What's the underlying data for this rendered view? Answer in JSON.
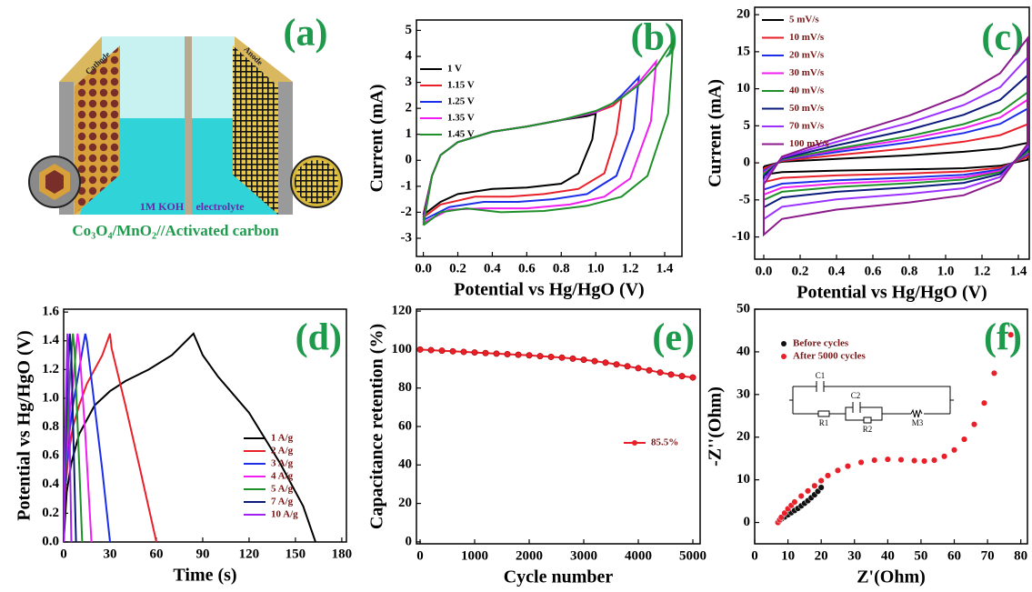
{
  "illustration": {
    "panel_label": "(a)",
    "cathode": "Cathode",
    "anode": "Anode",
    "electrolyte_name": "1M KOH",
    "electrolyte": "electrolyte",
    "caption": "Co₃O₄/MnO₂//Activated carbon"
  },
  "chart_data": [
    {
      "type": "line",
      "panel_label": "(b)",
      "x_label": "Potential vs Hg/HgO (V)",
      "y_label": "Current (mA)",
      "xlim": [
        -0.04,
        1.5
      ],
      "ylim": [
        -3.7,
        5.4
      ],
      "xticks": [
        {
          "value": 0,
          "label": "0.0"
        },
        0.2,
        0.4,
        0.6,
        0.8,
        {
          "value": 1,
          "label": "1.0"
        },
        1.2,
        1.4
      ],
      "yticks": [
        -3,
        -2,
        -1,
        0,
        1,
        2,
        3,
        4,
        5
      ],
      "series": [
        {
          "name": "1 V",
          "color": "#000000",
          "x": [
            0,
            0.05,
            0.1,
            0.2,
            0.4,
            0.6,
            0.8,
            0.95,
            1.0,
            0.98,
            0.9,
            0.8,
            0.6,
            0.4,
            0.2,
            0.1,
            0.02,
            0
          ],
          "values": [
            -2.1,
            -0.6,
            0.2,
            0.7,
            1.1,
            1.3,
            1.55,
            1.7,
            1.8,
            0.8,
            -0.5,
            -0.9,
            -1.05,
            -1.1,
            -1.3,
            -1.6,
            -2.0,
            -2.1
          ]
        },
        {
          "name": "1.15 V",
          "color": "#e8202a",
          "x": [
            0,
            0.05,
            0.1,
            0.2,
            0.4,
            0.6,
            0.8,
            1.0,
            1.1,
            1.15,
            1.12,
            1.05,
            0.9,
            0.7,
            0.5,
            0.3,
            0.1,
            0.02,
            0
          ],
          "values": [
            -2.2,
            -0.6,
            0.2,
            0.7,
            1.1,
            1.3,
            1.55,
            1.85,
            2.1,
            2.4,
            1.0,
            -0.5,
            -1.1,
            -1.3,
            -1.4,
            -1.4,
            -1.7,
            -2.1,
            -2.2
          ]
        },
        {
          "name": "1.25 V",
          "color": "#1c2ee8",
          "x": [
            0,
            0.05,
            0.1,
            0.2,
            0.4,
            0.6,
            0.8,
            1.0,
            1.1,
            1.15,
            1.25,
            1.22,
            1.12,
            0.95,
            0.75,
            0.55,
            0.35,
            0.15,
            0.03,
            0
          ],
          "values": [
            -2.3,
            -0.6,
            0.2,
            0.7,
            1.1,
            1.3,
            1.55,
            1.85,
            2.2,
            2.5,
            3.2,
            1.2,
            -0.6,
            -1.3,
            -1.5,
            -1.6,
            -1.6,
            -1.8,
            -2.2,
            -2.3
          ]
        },
        {
          "name": "1.35 V",
          "color": "#f01ef0",
          "x": [
            0,
            0.05,
            0.1,
            0.2,
            0.4,
            0.6,
            0.8,
            1.0,
            1.1,
            1.15,
            1.25,
            1.35,
            1.32,
            1.2,
            1.05,
            0.85,
            0.6,
            0.35,
            0.15,
            0.03,
            0
          ],
          "values": [
            -2.4,
            -0.6,
            0.2,
            0.7,
            1.1,
            1.3,
            1.55,
            1.85,
            2.2,
            2.4,
            3.0,
            3.8,
            1.5,
            -0.7,
            -1.4,
            -1.7,
            -1.85,
            -1.85,
            -1.9,
            -2.3,
            -2.4
          ]
        },
        {
          "name": "1.45 V",
          "color": "#1f8f2a",
          "x": [
            0,
            0.05,
            0.1,
            0.2,
            0.4,
            0.6,
            0.8,
            1.0,
            1.1,
            1.15,
            1.25,
            1.35,
            1.45,
            1.42,
            1.3,
            1.15,
            0.95,
            0.7,
            0.45,
            0.25,
            0.1,
            0.02,
            0
          ],
          "values": [
            -2.5,
            -0.6,
            0.2,
            0.7,
            1.1,
            1.3,
            1.55,
            1.9,
            2.2,
            2.4,
            2.9,
            3.6,
            4.6,
            1.8,
            -0.6,
            -1.4,
            -1.75,
            -1.95,
            -2.0,
            -1.85,
            -2.0,
            -2.4,
            -2.5
          ]
        }
      ]
    },
    {
      "type": "line",
      "panel_label": "(c)",
      "x_label": "Potential vs Hg/HgO (V)",
      "y_label": "Current (mA)",
      "xlim": [
        -0.05,
        1.46
      ],
      "ylim": [
        -13,
        21
      ],
      "xticks": [
        {
          "value": 0,
          "label": "0.0"
        },
        0.2,
        0.4,
        0.6,
        0.8,
        {
          "value": 1,
          "label": "1.0"
        },
        1.2,
        1.4
      ],
      "yticks": [
        -10,
        -5,
        0,
        5,
        10,
        15,
        20
      ],
      "series": [
        {
          "name": "5 mV/s",
          "color": "#000000",
          "x": [
            0,
            0.1,
            0.4,
            0.8,
            1.1,
            1.3,
            1.45,
            1.45,
            1.3,
            1.1,
            0.8,
            0.4,
            0.1,
            0,
            0
          ],
          "values": [
            -0.48,
            0.14,
            0.54,
            1.03,
            1.49,
            1.94,
            2.7,
            0.41,
            -0.4,
            -0.72,
            -0.88,
            -1.04,
            -1.25,
            -1.6,
            -0.48
          ]
        },
        {
          "name": "10 mV/s",
          "color": "#e8202a",
          "x": [
            0,
            0.1,
            0.4,
            0.8,
            1.1,
            1.3,
            1.45,
            1.45,
            1.3,
            1.1,
            0.8,
            0.4,
            0.1,
            0,
            0
          ],
          "values": [
            -0.78,
            0.26,
            1.04,
            1.98,
            2.86,
            3.74,
            5.2,
            0.78,
            -0.65,
            -1.17,
            -1.43,
            -1.69,
            -2.03,
            -2.6,
            -0.78
          ]
        },
        {
          "name": "20 mV/s",
          "color": "#1c2ee8",
          "x": [
            0,
            0.1,
            0.4,
            0.8,
            1.1,
            1.3,
            1.45,
            1.45,
            1.3,
            1.1,
            0.8,
            0.4,
            0.1,
            0,
            0
          ],
          "values": [
            -1.08,
            0.37,
            1.46,
            2.77,
            4.02,
            5.26,
            7.3,
            1.1,
            -0.9,
            -1.62,
            -1.98,
            -2.34,
            -2.81,
            -3.6,
            -1.08
          ]
        },
        {
          "name": "30 mV/s",
          "color": "#f01ef0",
          "x": [
            0,
            0.1,
            0.4,
            0.8,
            1.1,
            1.3,
            1.45,
            1.45,
            1.3,
            1.1,
            0.8,
            0.4,
            0.1,
            0,
            0
          ],
          "values": [
            -1.29,
            0.43,
            1.7,
            3.23,
            4.68,
            6.12,
            8.5,
            1.28,
            -1.08,
            -1.94,
            -2.37,
            -2.8,
            -3.35,
            -4.3,
            -1.29
          ]
        },
        {
          "name": "40 mV/s",
          "color": "#1f8f2a",
          "x": [
            0,
            0.1,
            0.4,
            0.8,
            1.1,
            1.3,
            1.45,
            1.45,
            1.3,
            1.1,
            0.8,
            0.4,
            0.1,
            0,
            0
          ],
          "values": [
            -1.5,
            0.48,
            1.9,
            3.61,
            5.23,
            6.84,
            9.5,
            1.43,
            -1.25,
            -2.25,
            -2.75,
            -3.25,
            -3.9,
            -5.0,
            -1.5
          ]
        },
        {
          "name": "50 mV/s",
          "color": "#0a1a7a",
          "x": [
            0,
            0.1,
            0.4,
            0.8,
            1.1,
            1.3,
            1.45,
            1.45,
            1.3,
            1.1,
            0.8,
            0.4,
            0.1,
            0,
            0
          ],
          "values": [
            -1.8,
            0.59,
            2.36,
            4.48,
            6.49,
            8.5,
            11.8,
            1.77,
            -1.5,
            -2.7,
            -3.3,
            -3.9,
            -4.68,
            -6.0,
            -1.8
          ]
        },
        {
          "name": "70 mV/s",
          "color": "#9b30ff",
          "x": [
            0,
            0.1,
            0.4,
            0.8,
            1.1,
            1.3,
            1.45,
            1.45,
            1.3,
            1.1,
            0.8,
            0.4,
            0.1,
            0,
            0
          ],
          "values": [
            -2.28,
            0.71,
            2.84,
            5.4,
            7.81,
            10.22,
            14.2,
            2.13,
            -1.9,
            -3.42,
            -4.18,
            -4.94,
            -5.93,
            -7.6,
            -2.28
          ]
        },
        {
          "name": "100 mV/s",
          "color": "#8b1a8b",
          "x": [
            0,
            0.1,
            0.4,
            0.8,
            1.1,
            1.3,
            1.45,
            1.45,
            1.3,
            1.1,
            0.8,
            0.4,
            0.1,
            0,
            0
          ],
          "values": [
            -2.91,
            0.84,
            3.36,
            6.38,
            9.24,
            12.1,
            16.8,
            2.52,
            -2.43,
            -4.37,
            -5.34,
            -6.31,
            -7.57,
            -9.7,
            -2.91
          ]
        }
      ]
    },
    {
      "type": "line",
      "panel_label": "(d)",
      "x_label": "Time (s)",
      "y_label": "Potential vs Hg/HgO (V)",
      "xlim": [
        0,
        183
      ],
      "ylim": [
        0,
        1.62
      ],
      "xticks": [
        0,
        30,
        60,
        90,
        120,
        150,
        180
      ],
      "yticks": [
        {
          "value": 0,
          "label": "0.0"
        },
        0.2,
        0.4,
        0.6,
        0.8,
        {
          "value": 1,
          "label": "1.0"
        },
        1.2,
        1.4,
        1.6
      ],
      "series": [
        {
          "name": "1 A/g",
          "color": "#000000",
          "x": [
            0,
            2,
            5,
            10,
            20,
            30,
            40,
            55,
            70,
            84,
            90,
            100,
            120,
            140,
            155,
            163
          ],
          "values": [
            0,
            0.35,
            0.55,
            0.75,
            0.95,
            1.05,
            1.12,
            1.2,
            1.3,
            1.45,
            1.3,
            1.15,
            0.9,
            0.55,
            0.25,
            0
          ]
        },
        {
          "name": "2 A/g",
          "color": "#e8202a",
          "x": [
            0,
            1,
            3,
            6,
            10,
            15,
            20,
            25,
            30,
            31,
            40,
            50,
            60
          ],
          "values": [
            0,
            0.35,
            0.6,
            0.8,
            0.95,
            1.1,
            1.2,
            1.3,
            1.45,
            1.35,
            0.95,
            0.48,
            0
          ]
        },
        {
          "name": "3 A/g",
          "color": "#1c2ee8",
          "x": [
            0,
            1,
            3,
            6,
            10,
            14,
            15,
            20,
            25,
            30
          ],
          "values": [
            0,
            0.4,
            0.7,
            0.95,
            1.2,
            1.45,
            1.4,
            0.95,
            0.5,
            0
          ]
        },
        {
          "name": "4 A/g",
          "color": "#f01ef0",
          "x": [
            0,
            1,
            3,
            6,
            9,
            10,
            14,
            18
          ],
          "values": [
            0,
            0.45,
            0.8,
            1.1,
            1.45,
            1.38,
            0.75,
            0
          ]
        },
        {
          "name": "5 A/g",
          "color": "#1f8f2a",
          "x": [
            0,
            1,
            3,
            6,
            7,
            9.5,
            12
          ],
          "values": [
            0,
            0.5,
            0.95,
            1.45,
            1.35,
            0.7,
            0
          ]
        },
        {
          "name": "7 A/g",
          "color": "#0a1a7a",
          "x": [
            0,
            1,
            2.5,
            4,
            5,
            8
          ],
          "values": [
            0,
            0.6,
            1.1,
            1.45,
            1.3,
            0
          ]
        },
        {
          "name": "10 A/g",
          "color": "#a020f0",
          "x": [
            0,
            0.8,
            2.5,
            3,
            5
          ],
          "values": [
            0,
            0.7,
            1.45,
            1.3,
            0
          ]
        }
      ]
    },
    {
      "type": "line",
      "markers": true,
      "panel_label": "(e)",
      "x_label": "Cycle number",
      "y_label": "Capacitance retention (%)",
      "xlim": [
        -67,
        5133
      ],
      "ylim": [
        -1,
        121
      ],
      "xticks": [
        0,
        1000,
        2000,
        3000,
        4000,
        5000
      ],
      "yticks": [
        0,
        20,
        40,
        60,
        80,
        100,
        120
      ],
      "series": [
        {
          "name": "85.5%",
          "color": "#e8202a",
          "x": [
            0,
            200,
            400,
            600,
            800,
            1000,
            1200,
            1400,
            1600,
            1800,
            2000,
            2200,
            2400,
            2600,
            2800,
            3000,
            3200,
            3400,
            3600,
            3800,
            4000,
            4200,
            4400,
            4600,
            4800,
            5000
          ],
          "values": [
            100,
            99.7,
            99.4,
            99.1,
            98.8,
            98.5,
            98.2,
            97.9,
            97.6,
            97.3,
            97.0,
            96.6,
            96.2,
            95.8,
            95.3,
            94.7,
            94.0,
            93.2,
            92.3,
            91.3,
            90.3,
            89.2,
            88.1,
            87.0,
            86.2,
            85.5
          ]
        }
      ]
    },
    {
      "type": "scatter",
      "panel_label": "(f)",
      "x_label": "Z'(Ohm)",
      "y_label": "-Z''(Ohm)",
      "xlim": [
        0,
        82
      ],
      "ylim": [
        -5,
        50
      ],
      "xticks": [
        0,
        10,
        20,
        30,
        40,
        50,
        60,
        70,
        80
      ],
      "yticks": [
        0,
        10,
        20,
        30,
        40,
        50
      ],
      "circuit_labels": [
        "C1",
        "R1",
        "C2",
        "R2",
        "M3"
      ],
      "series": [
        {
          "name": "Before cycles",
          "color": "#111111",
          "x": [
            7,
            7.5,
            8,
            9,
            10,
            11,
            12,
            13,
            14,
            15,
            16,
            17,
            18,
            19,
            20
          ],
          "values": [
            0,
            0.4,
            0.8,
            1.3,
            1.8,
            2.3,
            2.8,
            3.3,
            3.9,
            4.5,
            5.1,
            5.8,
            6.5,
            7.3,
            8.2
          ]
        },
        {
          "name": "After 5000 cycles",
          "color": "#e8202a",
          "x": [
            7,
            7.5,
            8,
            9,
            10,
            11,
            12,
            14,
            16,
            18,
            20,
            22,
            25,
            28,
            32,
            36,
            40,
            44,
            48,
            51,
            54,
            57,
            60,
            63,
            66,
            69,
            72,
            77
          ],
          "values": [
            0,
            0.6,
            1.2,
            2.2,
            3.2,
            4.0,
            4.8,
            6.2,
            7.4,
            8.6,
            9.8,
            11,
            12.2,
            13.2,
            14.1,
            14.6,
            14.8,
            14.7,
            14.5,
            14.4,
            14.6,
            15.5,
            17,
            19.5,
            23,
            28,
            35,
            44
          ]
        }
      ]
    }
  ]
}
